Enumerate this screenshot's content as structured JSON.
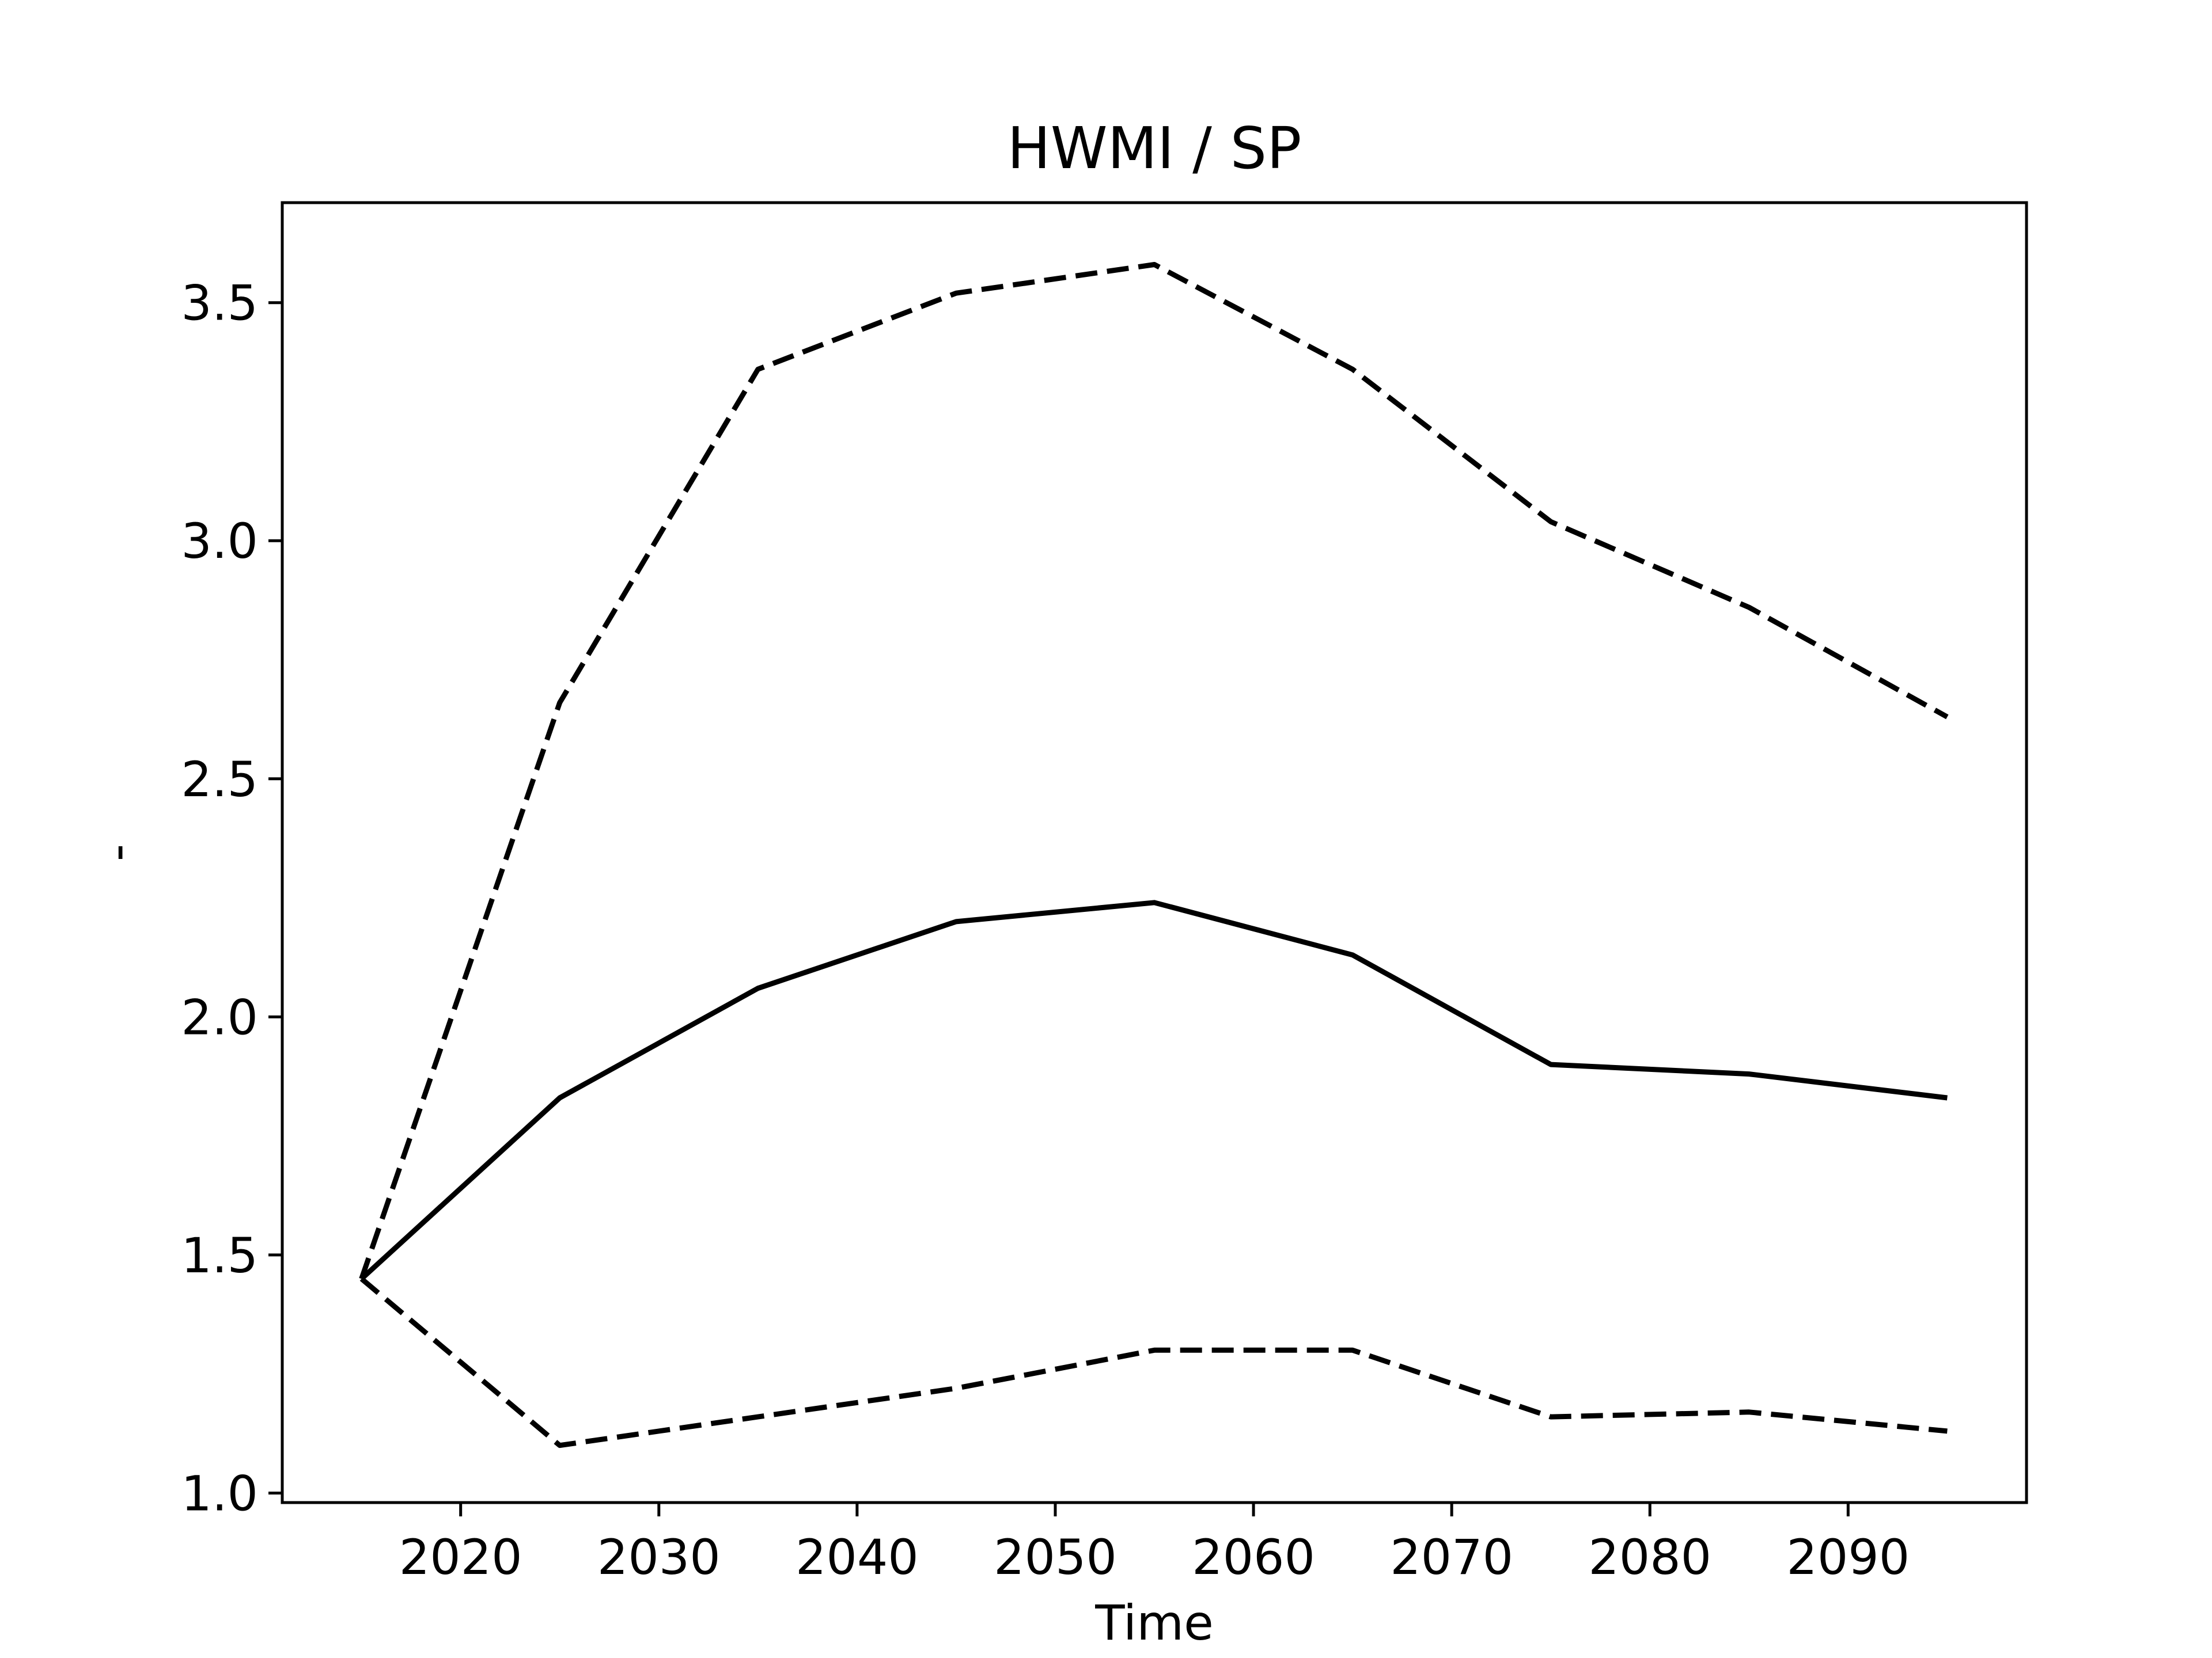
{
  "chart_data": {
    "type": "line",
    "title": "HWMI / SP",
    "xlabel": "Time",
    "ylabel": "-",
    "x": [
      2015,
      2025,
      2035,
      2045,
      2055,
      2065,
      2075,
      2085,
      2095
    ],
    "xlim": [
      2011,
      2099
    ],
    "ylim": [
      0.98,
      3.71
    ],
    "x_ticks": [
      2020,
      2030,
      2040,
      2050,
      2060,
      2070,
      2080,
      2090
    ],
    "y_ticks": [
      1.0,
      1.5,
      2.0,
      2.5,
      3.0,
      3.5
    ],
    "y_tick_labels": [
      "1.0",
      "1.5",
      "2.0",
      "2.5",
      "3.0",
      "3.5"
    ],
    "grid": false,
    "series": [
      {
        "values": [
          1.45,
          1.83,
          2.06,
          2.2,
          2.24,
          2.13,
          1.9,
          1.88,
          1.83
        ],
        "style": "solid",
        "color": "#000000"
      },
      {
        "values": [
          1.45,
          2.66,
          3.36,
          3.52,
          3.58,
          3.36,
          3.04,
          2.86,
          2.63
        ],
        "style": "dashed",
        "color": "#000000"
      },
      {
        "values": [
          1.45,
          1.1,
          1.16,
          1.22,
          1.3,
          1.3,
          1.16,
          1.17,
          1.13
        ],
        "style": "dashed",
        "color": "#000000"
      }
    ]
  }
}
